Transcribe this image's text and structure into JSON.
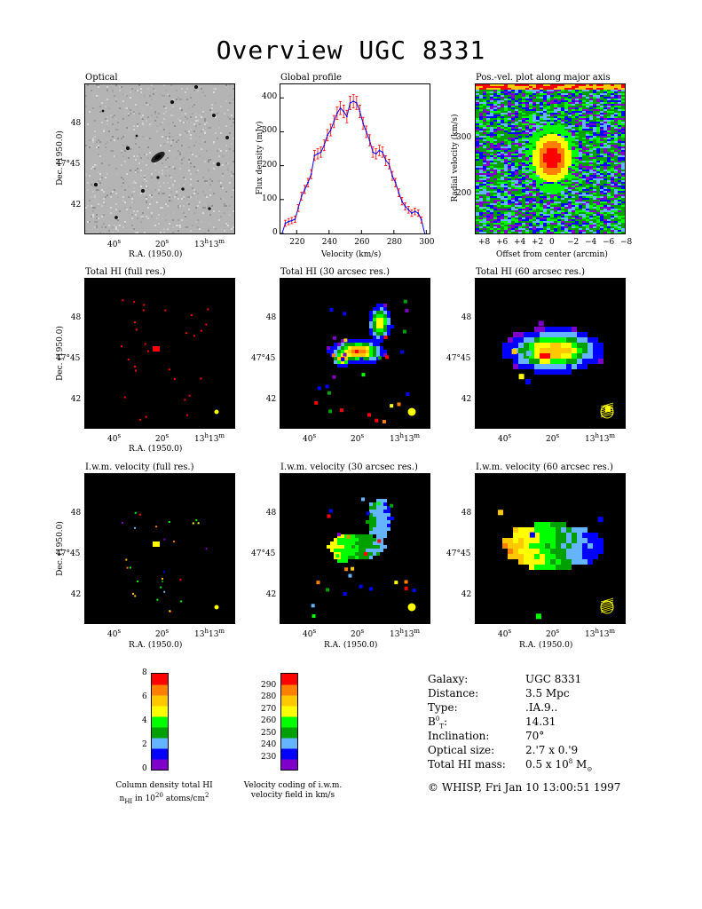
{
  "title": "Overview UGC 8331",
  "panels": {
    "optical": "Optical",
    "global_profile": "Global profile",
    "pv": "Pos.-vel. plot along major axis",
    "hi_full": "Total HI (full res.)",
    "hi_30": "Total HI (30 arcsec res.)",
    "hi_60": "Total HI (60 arcsec res.)",
    "vel_full": "I.w.m. velocity (full res.)",
    "vel_30": "I.w.m. velocity (30 arcsec res.)",
    "vel_60": "I.w.m. velocity (60 arcsec res.)"
  },
  "axes": {
    "ra": "R.A. (1950.0)",
    "dec": "Dec. (1950.0)",
    "velocity": "Velocity (km/s)",
    "flux": "Flux density (mJy)",
    "radial_velocity": "Radial velocity (km/s)",
    "offset": "Offset from center (arcmin)",
    "ra_ticks": [
      "40",
      "20",
      "13"
    ],
    "ra_tick_sup": [
      "s",
      "s",
      "h"
    ],
    "ra_tick_extra": [
      "",
      "",
      "13"
    ],
    "dec_ticks": [
      "48",
      "47°45",
      "42"
    ],
    "pv_x_ticks": [
      "+8",
      "+6",
      "+4",
      "+2",
      "0",
      "−2",
      "−4",
      "−6",
      "−8"
    ],
    "pv_y_ticks": [
      "300",
      "200"
    ]
  },
  "chart_data": [
    {
      "type": "line",
      "title": "Global profile",
      "xlabel": "Velocity (km/s)",
      "ylabel": "Flux density (mJy)",
      "xlim": [
        210,
        302
      ],
      "ylim": [
        0,
        440
      ],
      "x_ticks": [
        220,
        240,
        260,
        280,
        300
      ],
      "y_ticks": [
        0,
        100,
        200,
        300,
        400
      ],
      "x": [
        211,
        213,
        215,
        217,
        219,
        221,
        223,
        225,
        227,
        229,
        231,
        233,
        235,
        237,
        239,
        241,
        243,
        245,
        247,
        249,
        251,
        253,
        255,
        257,
        259,
        261,
        263,
        265,
        267,
        269,
        271,
        273,
        275,
        277,
        279,
        281,
        283,
        285,
        287,
        289,
        291,
        293,
        295,
        297,
        299
      ],
      "values": [
        0,
        30,
        35,
        38,
        42,
        75,
        110,
        130,
        150,
        175,
        230,
        235,
        240,
        260,
        290,
        305,
        330,
        355,
        370,
        360,
        345,
        385,
        390,
        385,
        360,
        325,
        300,
        275,
        240,
        235,
        245,
        240,
        215,
        205,
        170,
        150,
        120,
        95,
        80,
        70,
        60,
        65,
        60,
        40,
        0
      ]
    },
    {
      "type": "heatmap",
      "title": "Column density total HI n_HI in 10^20 atoms/cm^2",
      "colorbar_ticks": [
        0,
        2,
        4,
        6,
        8
      ],
      "colors": [
        "#7f00c8",
        "#0000ff",
        "#64b4ff",
        "#00a000",
        "#00ff00",
        "#ffff00",
        "#ffc800",
        "#ff7f00",
        "#ff0000"
      ]
    },
    {
      "type": "heatmap",
      "title": "Velocity coding of i.w.m. velocity field in km/s",
      "colorbar_ticks": [
        230,
        240,
        250,
        260,
        270,
        280,
        290
      ],
      "colors": [
        "#7f00c8",
        "#0000ff",
        "#64b4ff",
        "#00a000",
        "#00ff00",
        "#ffff00",
        "#ffc800",
        "#ff7f00",
        "#ff0000"
      ]
    }
  ],
  "colorbars": {
    "density_caption_1": "Column density total HI",
    "density_caption_2": "n",
    "density_caption_sub": "HI",
    "density_caption_3": " in 10",
    "density_caption_sup": "20",
    "density_caption_4": " atoms/cm",
    "density_caption_sup2": "2",
    "velocity_caption_1": "Velocity coding of i.w.m.",
    "velocity_caption_2": "velocity field in km/s"
  },
  "info": {
    "galaxy_label": "Galaxy:",
    "galaxy_value": "UGC 8331",
    "distance_label": "Distance:",
    "distance_value": "3.5 Mpc",
    "type_label": "Type:",
    "type_value": ".IA.9..",
    "bt_label": "B",
    "bt_sup": "0",
    "bt_sub": "T",
    "bt_colon": ":",
    "bt_value": "14.31",
    "incl_label": "Inclination:",
    "incl_value": "70°",
    "opt_label": "Optical size:",
    "opt_value": "2.'7 x 0.'9",
    "mass_label": "Total HI mass:",
    "mass_value": "0.5 x 10",
    "mass_sup": "8",
    "mass_unit": " M",
    "mass_sub": "⊙",
    "footer": "© WHISP, Fri Jan 10 13:00:51 1997"
  }
}
